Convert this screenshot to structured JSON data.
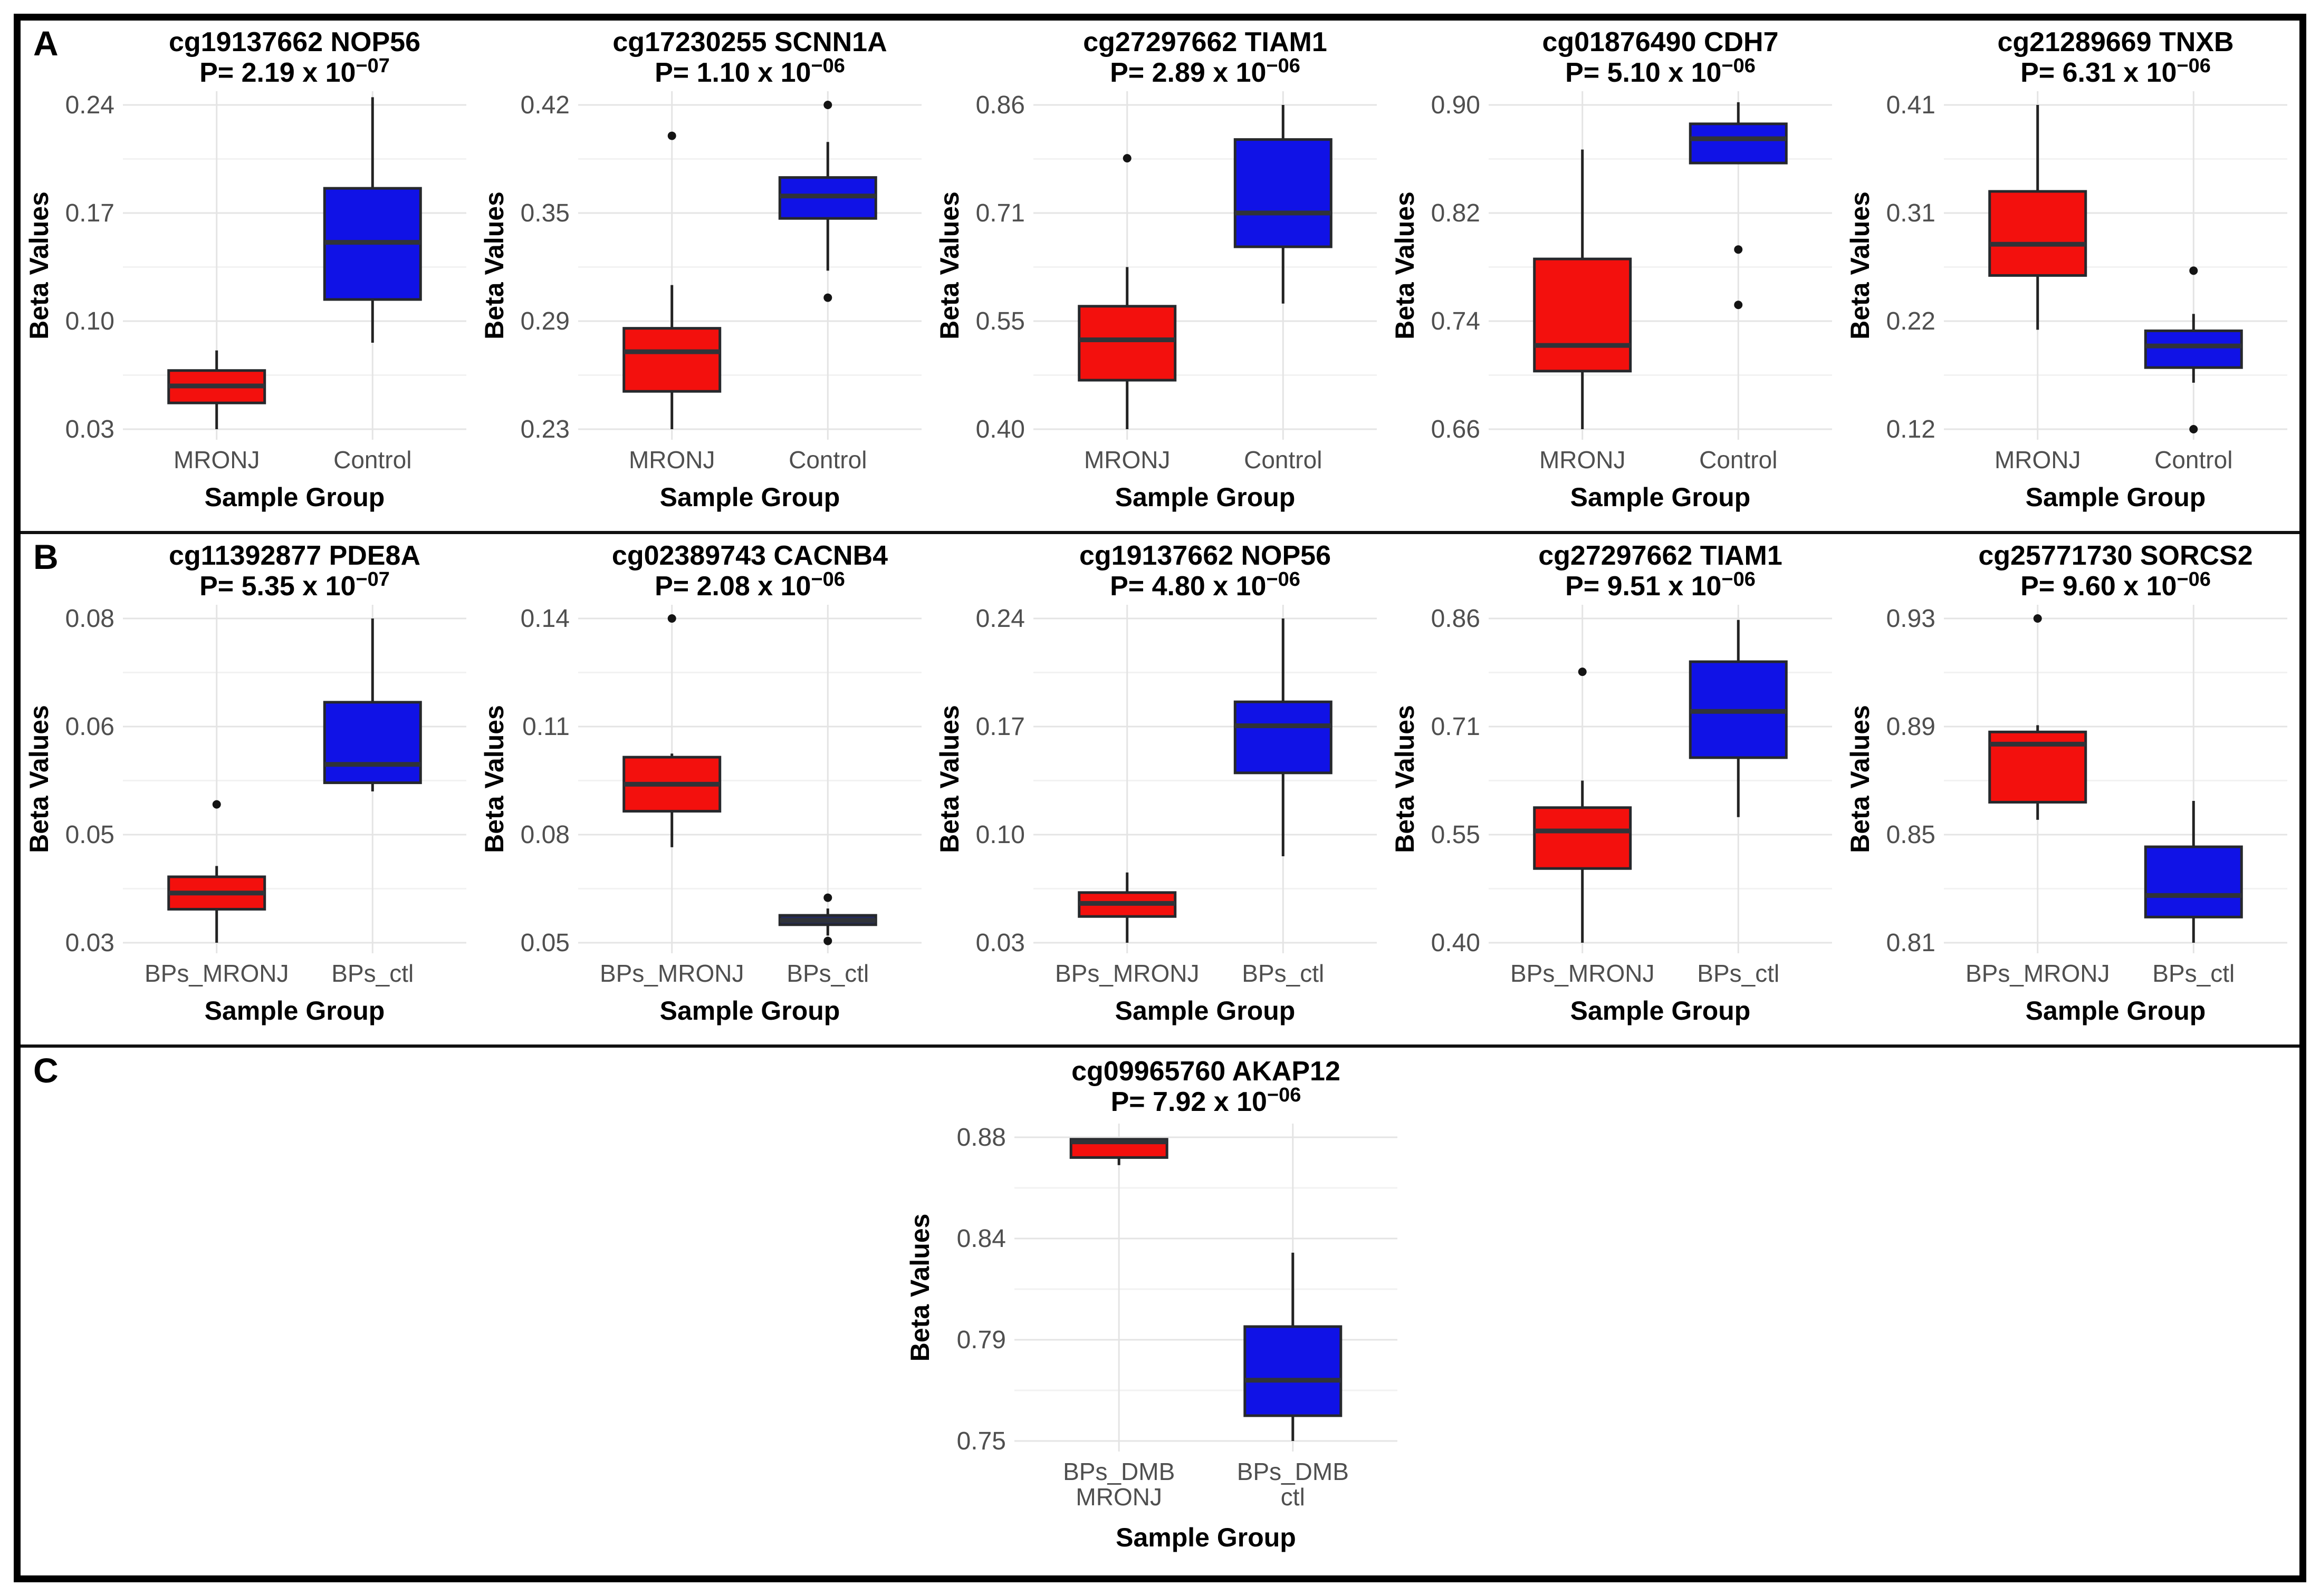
{
  "figure": {
    "panel_labels": [
      "A",
      "B",
      "C"
    ],
    "ylabel": "Beta Values",
    "xlabel": "Sample Group",
    "colors": {
      "red": "#f3100d",
      "blue": "#1012e6",
      "navy": "#232a60",
      "box_stroke": "#26282c",
      "median": "#303338",
      "whisker": "#222222",
      "outlier": "#141414",
      "grid_major": "#e4e4e4",
      "grid_minor": "#f2f2f2",
      "tick_text": "#4f4f4f",
      "title_text": "#000000"
    }
  },
  "chart_data": [
    {
      "type": "boxplot",
      "panel": "A",
      "title": "cg19137662 NOP56",
      "p_prefix": "P= 2.19 x 10",
      "p_exp": "−07",
      "tick_labels": [
        "0.03",
        "0.10",
        "0.17",
        "0.24"
      ],
      "tick_values": [
        0.03,
        0.1,
        0.17,
        0.24
      ],
      "groups": [
        {
          "label_lines": [
            "MRONJ"
          ],
          "color_key": "red",
          "stats": {
            "low": 0.03,
            "q1": 0.047,
            "med": 0.058,
            "q3": 0.068,
            "high": 0.081
          },
          "outliers": []
        },
        {
          "label_lines": [
            "Control"
          ],
          "color_key": "blue",
          "stats": {
            "low": 0.086,
            "q1": 0.114,
            "med": 0.151,
            "q3": 0.186,
            "high": 0.245
          },
          "outliers": []
        }
      ]
    },
    {
      "type": "boxplot",
      "panel": "A",
      "title": "cg17230255 SCNN1A",
      "p_prefix": "P= 1.10 x 10",
      "p_exp": "−06",
      "tick_labels": [
        "0.23",
        "0.29",
        "0.35",
        "0.42"
      ],
      "tick_values": [
        0.23,
        0.29,
        0.35,
        0.42
      ],
      "groups": [
        {
          "label_lines": [
            "MRONJ"
          ],
          "color_key": "red",
          "stats": {
            "low": 0.23,
            "q1": 0.251,
            "med": 0.273,
            "q3": 0.286,
            "high": 0.31
          },
          "outliers": [
            0.4
          ]
        },
        {
          "label_lines": [
            "Control"
          ],
          "color_key": "blue",
          "stats": {
            "low": 0.318,
            "q1": 0.347,
            "med": 0.361,
            "q3": 0.373,
            "high": 0.396
          },
          "outliers": [
            0.42,
            0.303
          ]
        }
      ]
    },
    {
      "type": "boxplot",
      "panel": "A",
      "title": "cg27297662 TIAM1",
      "p_prefix": "P= 2.89 x 10",
      "p_exp": "−06",
      "tick_labels": [
        "0.40",
        "0.55",
        "0.71",
        "0.86"
      ],
      "tick_values": [
        0.4,
        0.55,
        0.71,
        0.86
      ],
      "groups": [
        {
          "label_lines": [
            "MRONJ"
          ],
          "color_key": "red",
          "stats": {
            "low": 0.4,
            "q1": 0.468,
            "med": 0.524,
            "q3": 0.572,
            "high": 0.63
          },
          "outliers": [
            0.786
          ]
        },
        {
          "label_lines": [
            "Control"
          ],
          "color_key": "blue",
          "stats": {
            "low": 0.576,
            "q1": 0.66,
            "med": 0.71,
            "q3": 0.812,
            "high": 0.86
          },
          "outliers": []
        }
      ]
    },
    {
      "type": "boxplot",
      "panel": "A",
      "title": "cg01876490 CDH7",
      "p_prefix": "P= 5.10 x 10",
      "p_exp": "−06",
      "tick_labels": [
        "0.66",
        "0.74",
        "0.82",
        "0.90"
      ],
      "tick_values": [
        0.66,
        0.74,
        0.82,
        0.9
      ],
      "groups": [
        {
          "label_lines": [
            "MRONJ"
          ],
          "color_key": "red",
          "stats": {
            "low": 0.66,
            "q1": 0.703,
            "med": 0.722,
            "q3": 0.786,
            "high": 0.867
          },
          "outliers": []
        },
        {
          "label_lines": [
            "Control"
          ],
          "color_key": "blue",
          "stats": {
            "low": 0.857,
            "q1": 0.857,
            "med": 0.875,
            "q3": 0.886,
            "high": 0.902
          },
          "outliers": [
            0.793,
            0.752
          ]
        }
      ]
    },
    {
      "type": "boxplot",
      "panel": "A",
      "title": "cg21289669 TNXB",
      "p_prefix": "P= 6.31 x 10",
      "p_exp": "−06",
      "tick_labels": [
        "0.12",
        "0.22",
        "0.31",
        "0.41"
      ],
      "tick_values": [
        0.12,
        0.22,
        0.31,
        0.41
      ],
      "groups": [
        {
          "label_lines": [
            "MRONJ"
          ],
          "color_key": "red",
          "stats": {
            "low": 0.212,
            "q1": 0.258,
            "med": 0.284,
            "q3": 0.33,
            "high": 0.41
          },
          "outliers": []
        },
        {
          "label_lines": [
            "Control"
          ],
          "color_key": "blue",
          "stats": {
            "low": 0.163,
            "q1": 0.177,
            "med": 0.197,
            "q3": 0.211,
            "high": 0.226
          },
          "outliers": [
            0.262,
            0.12
          ]
        }
      ]
    },
    {
      "type": "boxplot",
      "panel": "B",
      "title": "cg11392877 PDE8A",
      "p_prefix": "P= 5.35 x 10",
      "p_exp": "−07",
      "tick_labels": [
        "0.03",
        "0.05",
        "0.06",
        "0.08"
      ],
      "tick_values": [
        0.03,
        0.05,
        0.06,
        0.08
      ],
      "groups": [
        {
          "label_lines": [
            "BPs_MRONJ"
          ],
          "color_key": "red",
          "stats": {
            "low": 0.03,
            "q1": 0.0362,
            "med": 0.0392,
            "q3": 0.0422,
            "high": 0.0442
          },
          "outliers": [
            0.0528
          ]
        },
        {
          "label_lines": [
            "BPs_ctl"
          ],
          "color_key": "blue",
          "stats": {
            "low": 0.054,
            "q1": 0.0548,
            "med": 0.0565,
            "q3": 0.0645,
            "high": 0.08
          },
          "outliers": []
        }
      ]
    },
    {
      "type": "boxplot",
      "panel": "B",
      "title": "cg02389743 CACNB4",
      "p_prefix": "P= 2.08 x 10",
      "p_exp": "−06",
      "tick_labels": [
        "0.05",
        "0.08",
        "0.11",
        "0.14"
      ],
      "tick_values": [
        0.05,
        0.08,
        0.11,
        0.14
      ],
      "groups": [
        {
          "label_lines": [
            "BPs_MRONJ"
          ],
          "color_key": "red",
          "stats": {
            "low": 0.0765,
            "q1": 0.0865,
            "med": 0.094,
            "q3": 0.1015,
            "high": 0.1025
          },
          "outliers": [
            0.14
          ]
        },
        {
          "label_lines": [
            "BPs_ctl"
          ],
          "color_key": "navy",
          "stats": {
            "low": 0.052,
            "q1": 0.055,
            "med": 0.0562,
            "q3": 0.0576,
            "high": 0.0595
          },
          "outliers": [
            0.0625,
            0.0505
          ]
        }
      ]
    },
    {
      "type": "boxplot",
      "panel": "B",
      "title": "cg19137662 NOP56",
      "p_prefix": "P= 4.80 x 10",
      "p_exp": "−06",
      "tick_labels": [
        "0.03",
        "0.10",
        "0.17",
        "0.24"
      ],
      "tick_values": [
        0.03,
        0.1,
        0.17,
        0.24
      ],
      "groups": [
        {
          "label_lines": [
            "BPs_MRONJ"
          ],
          "color_key": "red",
          "stats": {
            "low": 0.03,
            "q1": 0.047,
            "med": 0.0555,
            "q3": 0.0625,
            "high": 0.0755
          },
          "outliers": []
        },
        {
          "label_lines": [
            "BPs_ctl"
          ],
          "color_key": "blue",
          "stats": {
            "low": 0.086,
            "q1": 0.14,
            "med": 0.1705,
            "q3": 0.186,
            "high": 0.24
          },
          "outliers": []
        }
      ]
    },
    {
      "type": "boxplot",
      "panel": "B",
      "title": "cg27297662 TIAM1",
      "p_prefix": "P= 9.51 x 10",
      "p_exp": "−06",
      "tick_labels": [
        "0.40",
        "0.55",
        "0.71",
        "0.86"
      ],
      "tick_values": [
        0.4,
        0.55,
        0.71,
        0.86
      ],
      "groups": [
        {
          "label_lines": [
            "BPs_MRONJ"
          ],
          "color_key": "red",
          "stats": {
            "low": 0.4,
            "q1": 0.503,
            "med": 0.5555,
            "q3": 0.59,
            "high": 0.63
          },
          "outliers": [
            0.786
          ]
        },
        {
          "label_lines": [
            "BPs_ctl"
          ],
          "color_key": "blue",
          "stats": {
            "low": 0.576,
            "q1": 0.664,
            "med": 0.731,
            "q3": 0.8,
            "high": 0.858
          },
          "outliers": []
        }
      ]
    },
    {
      "type": "boxplot",
      "panel": "B",
      "title": "cg25771730 SORCS2",
      "p_prefix": "P= 9.60 x 10",
      "p_exp": "−06",
      "tick_labels": [
        "0.81",
        "0.85",
        "0.89",
        "0.93"
      ],
      "tick_values": [
        0.81,
        0.85,
        0.89,
        0.93
      ],
      "groups": [
        {
          "label_lines": [
            "BPs_MRONJ"
          ],
          "color_key": "red",
          "stats": {
            "low": 0.8555,
            "q1": 0.862,
            "med": 0.8835,
            "q3": 0.888,
            "high": 0.8905
          },
          "outliers": [
            0.93
          ]
        },
        {
          "label_lines": [
            "BPs_ctl"
          ],
          "color_key": "blue",
          "stats": {
            "low": 0.81,
            "q1": 0.8195,
            "med": 0.8275,
            "q3": 0.8455,
            "high": 0.8625
          },
          "outliers": []
        }
      ]
    },
    {
      "type": "boxplot",
      "panel": "C",
      "title": "cg09965760 AKAP12",
      "p_prefix": "P= 7.92 x 10",
      "p_exp": "−06",
      "tick_labels": [
        "0.75",
        "0.79",
        "0.84",
        "0.88"
      ],
      "tick_values": [
        0.75,
        0.79,
        0.84,
        0.88
      ],
      "groups": [
        {
          "label_lines": [
            "BPs_DMB",
            "MRONJ"
          ],
          "color_key": "red",
          "stats": {
            "low": 0.869,
            "q1": 0.872,
            "med": 0.8782,
            "q3": 0.8792,
            "high": 0.8792
          },
          "outliers": []
        },
        {
          "label_lines": [
            "BPs_DMB",
            "ctl"
          ],
          "color_key": "blue",
          "stats": {
            "low": 0.75,
            "q1": 0.76,
            "med": 0.774,
            "q3": 0.7965,
            "high": 0.833
          },
          "outliers": []
        }
      ]
    }
  ]
}
